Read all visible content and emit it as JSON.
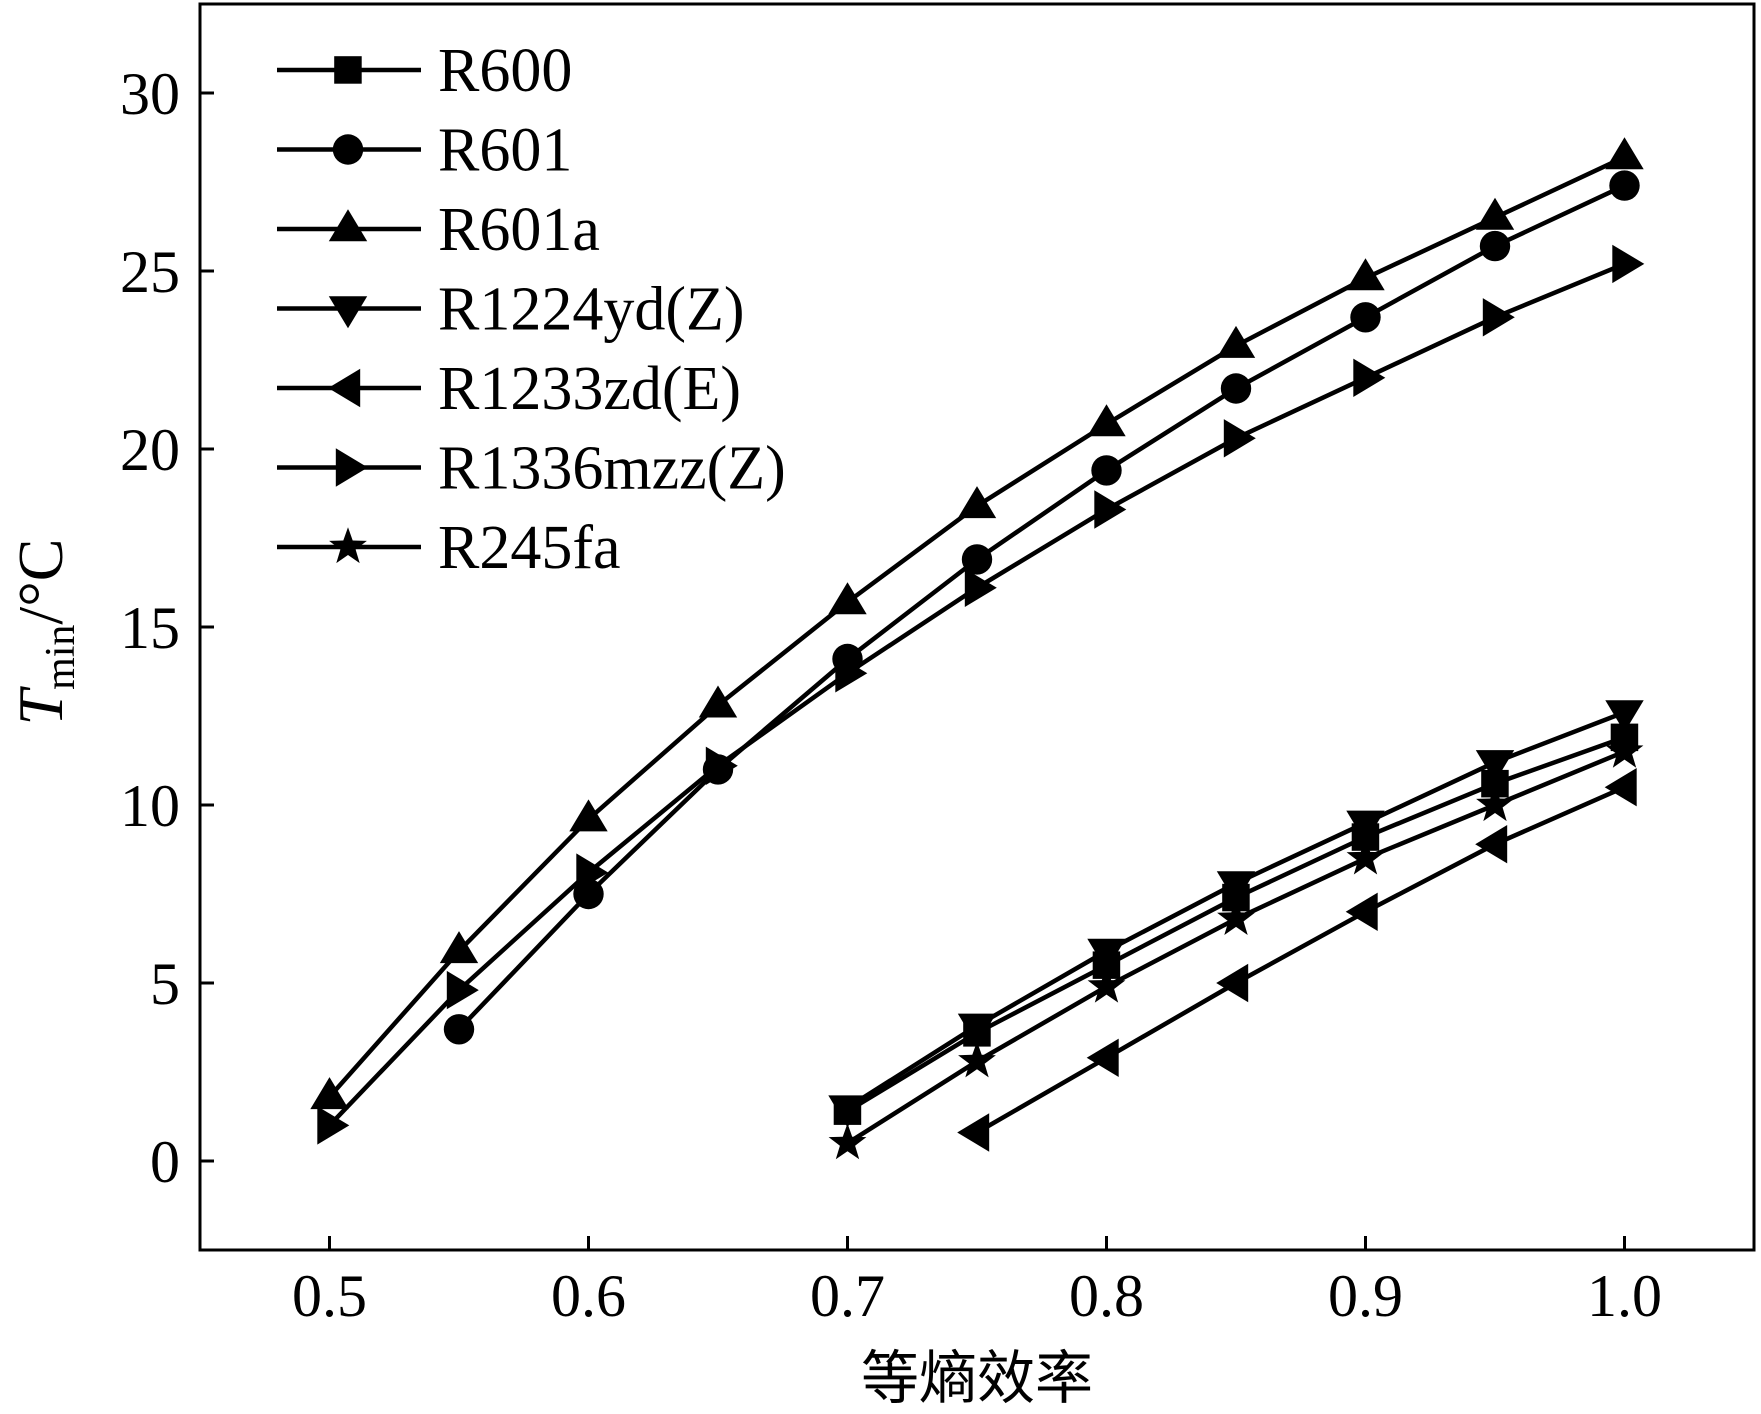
{
  "colors": {
    "ink": "#000000",
    "background": "#ffffff"
  },
  "chart_data": {
    "type": "line",
    "title": "",
    "xlabel": "等熵效率",
    "ylabel_symbol": "T",
    "ylabel_subscript": "min",
    "ylabel_unit": "/°C",
    "xlim": [
      0.45,
      1.05
    ],
    "ylim": [
      -2.5,
      32.5
    ],
    "xticks": [
      0.5,
      0.6,
      0.7,
      0.8,
      0.9,
      1.0
    ],
    "xtick_labels": [
      "0.5",
      "0.6",
      "0.7",
      "0.8",
      "0.9",
      "1.0"
    ],
    "yticks": [
      0,
      5,
      10,
      15,
      20,
      25,
      30
    ],
    "ytick_labels": [
      "0",
      "5",
      "10",
      "15",
      "20",
      "25",
      "30"
    ],
    "grid": false,
    "legend_position": "top-left",
    "series": [
      {
        "name": "R600",
        "marker": "square",
        "x": [
          0.7,
          0.75,
          0.8,
          0.85,
          0.9,
          0.95,
          1.0
        ],
        "y": [
          1.4,
          3.6,
          5.5,
          7.4,
          9.1,
          10.6,
          11.9
        ]
      },
      {
        "name": "R601",
        "marker": "circle",
        "x": [
          0.55,
          0.6,
          0.65,
          0.7,
          0.75,
          0.8,
          0.85,
          0.9,
          0.95,
          1.0
        ],
        "y": [
          3.7,
          7.5,
          11.0,
          14.1,
          16.9,
          19.4,
          21.7,
          23.7,
          25.7,
          27.4
        ]
      },
      {
        "name": "R601a",
        "marker": "triangle-up",
        "x": [
          0.5,
          0.55,
          0.6,
          0.65,
          0.7,
          0.75,
          0.8,
          0.85,
          0.9,
          0.95,
          1.0
        ],
        "y": [
          1.8,
          5.9,
          9.6,
          12.8,
          15.7,
          18.4,
          20.7,
          22.9,
          24.8,
          26.5,
          28.2
        ]
      },
      {
        "name": "R1224yd(Z)",
        "marker": "triangle-down",
        "x": [
          0.7,
          0.75,
          0.8,
          0.85,
          0.9,
          0.95,
          1.0
        ],
        "y": [
          1.5,
          3.8,
          5.9,
          7.8,
          9.5,
          11.2,
          12.6
        ]
      },
      {
        "name": "R1233zd(E)",
        "marker": "triangle-left",
        "x": [
          0.75,
          0.8,
          0.85,
          0.9,
          0.95,
          1.0
        ],
        "y": [
          0.8,
          2.9,
          5.0,
          7.0,
          8.9,
          10.5
        ]
      },
      {
        "name": "R1336mzz(Z)",
        "marker": "triangle-right",
        "x": [
          0.5,
          0.55,
          0.6,
          0.65,
          0.7,
          0.75,
          0.8,
          0.85,
          0.9,
          0.95,
          1.0
        ],
        "y": [
          1.0,
          4.8,
          8.1,
          11.1,
          13.7,
          16.1,
          18.3,
          20.3,
          22.0,
          23.7,
          25.2
        ]
      },
      {
        "name": "R245fa",
        "marker": "star",
        "x": [
          0.7,
          0.75,
          0.8,
          0.85,
          0.9,
          0.95,
          1.0
        ],
        "y": [
          0.5,
          2.8,
          4.9,
          6.8,
          8.5,
          10.0,
          11.5
        ]
      }
    ]
  }
}
